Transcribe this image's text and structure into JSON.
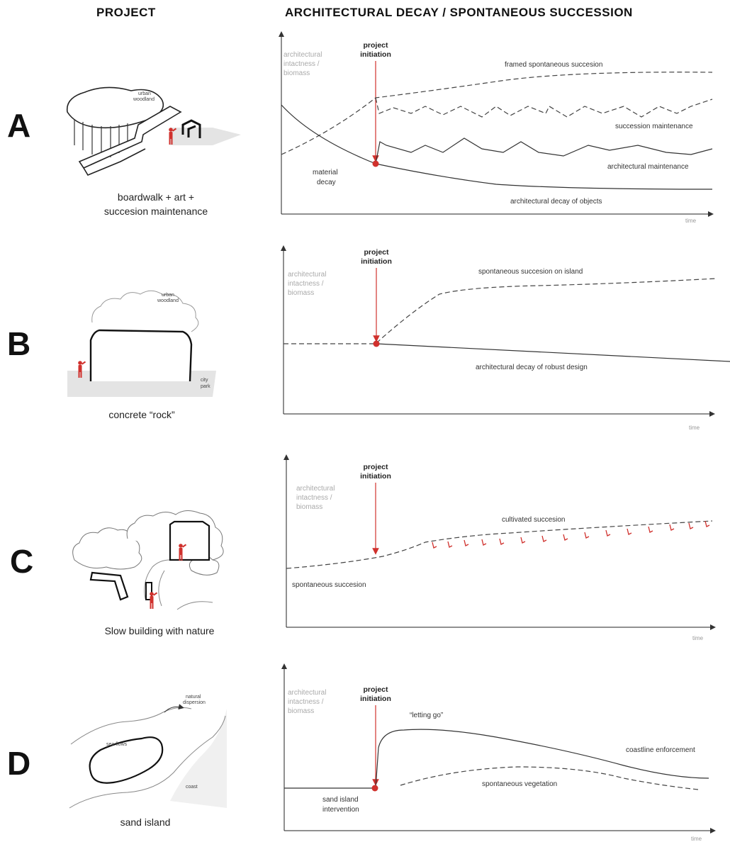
{
  "headers": {
    "project": "PROJECT",
    "decay": "ARCHITECTURAL DECAY / SPONTANEOUS SUCCESSION"
  },
  "common": {
    "y_axis_label": [
      "architectural",
      "intactness /",
      "biomass"
    ],
    "x_axis_label": "time",
    "project_initiation": [
      "project",
      "initiation"
    ],
    "accent_color": "#d0312d"
  },
  "rows": [
    {
      "letter": "A",
      "caption": [
        "boardwalk + art +",
        "succesion maintenance"
      ],
      "illustration_labels": [
        "urban",
        "woodland"
      ],
      "curve_labels": {
        "framed": "framed spontaneous succesion",
        "succession_maint": "succession maintenance",
        "arch_maint": "architectural maintenance",
        "material_decay": [
          "material",
          "decay"
        ],
        "decay_objects": "architectural decay of objects"
      }
    },
    {
      "letter": "B",
      "caption": [
        "concrete “rock”"
      ],
      "illustration_labels": [
        "urban",
        "woodland",
        "city",
        "park"
      ],
      "curve_labels": {
        "island": "spontaneous succesion on island",
        "robust": "architectural decay of robust design"
      }
    },
    {
      "letter": "C",
      "caption": [
        "Slow building with nature"
      ],
      "illustration_labels": [],
      "curve_labels": {
        "cultivated": "cultivated succesion",
        "spontaneous": "spontaneous succesion"
      }
    },
    {
      "letter": "D",
      "caption": [
        "sand island"
      ],
      "illustration_labels": [
        "natural",
        "dispersion",
        "sea flows",
        "coast"
      ],
      "curve_labels": {
        "letting_go": "“letting go”",
        "coastline": "coastline enforcement",
        "vegetation": "spontaneous vegetation",
        "intervention": [
          "sand island",
          "intervention"
        ]
      }
    }
  ]
}
